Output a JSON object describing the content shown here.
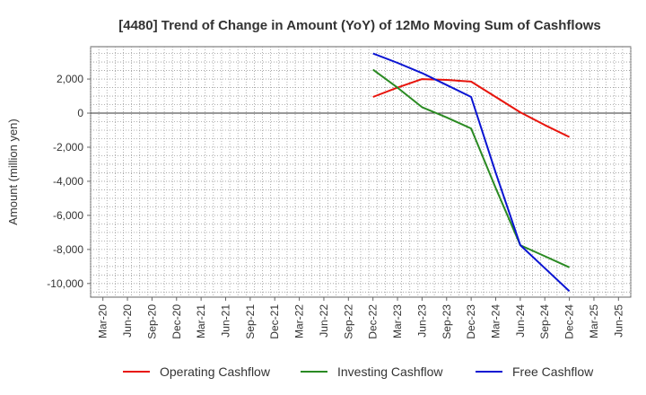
{
  "chart_data": {
    "type": "line",
    "title": "[4480]  Trend of Change in Amount (YoY) of 12Mo Moving Sum of Cashflows",
    "xlabel": "",
    "ylabel": "Amount (million yen)",
    "categories": [
      "Mar-20",
      "Jun-20",
      "Sep-20",
      "Dec-20",
      "Mar-21",
      "Jun-21",
      "Sep-21",
      "Dec-21",
      "Mar-22",
      "Jun-22",
      "Sep-22",
      "Dec-22",
      "Mar-23",
      "Jun-23",
      "Sep-23",
      "Dec-23",
      "Mar-24",
      "Jun-24",
      "Sep-24",
      "Dec-24",
      "Mar-25",
      "Jun-25"
    ],
    "ylim": [
      -10800,
      3900
    ],
    "yticks": [
      2000,
      0,
      -2000,
      -4000,
      -6000,
      -8000,
      -10000
    ],
    "ytick_labels": [
      "2,000",
      "0",
      "-2,000",
      "-4,000",
      "-6,000",
      "-8,000",
      "-10,000"
    ],
    "grid": true,
    "legend_position": "bottom",
    "series": [
      {
        "name": "Operating Cashflow",
        "color": "#e8140c",
        "values": [
          null,
          null,
          null,
          null,
          null,
          null,
          null,
          null,
          null,
          null,
          null,
          950,
          1500,
          2000,
          1950,
          1850,
          950,
          50,
          -700,
          -1400,
          null,
          null
        ]
      },
      {
        "name": "Investing Cashflow",
        "color": "#2a8a22",
        "values": [
          null,
          null,
          null,
          null,
          null,
          null,
          null,
          null,
          null,
          null,
          null,
          2550,
          1500,
          350,
          -250,
          -900,
          -4400,
          -7750,
          -8400,
          -9050,
          null,
          null
        ]
      },
      {
        "name": "Free Cashflow",
        "color": "#0a14d2",
        "values": [
          null,
          null,
          null,
          null,
          null,
          null,
          null,
          null,
          null,
          null,
          null,
          3500,
          2950,
          2350,
          1650,
          950,
          -3500,
          -7750,
          -9100,
          -10450,
          null,
          null
        ]
      }
    ]
  }
}
